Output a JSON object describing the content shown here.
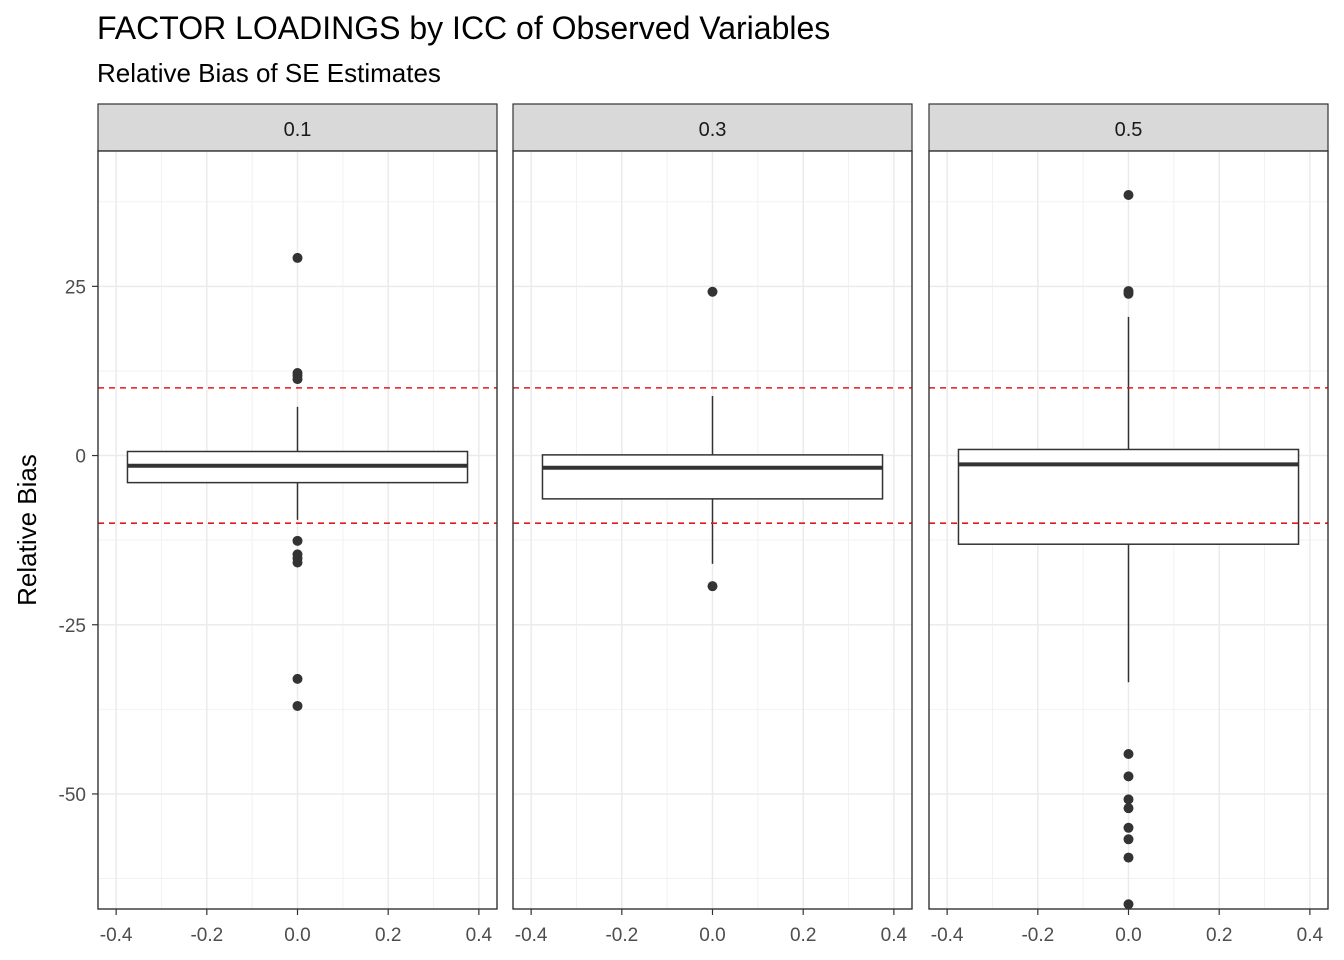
{
  "title": "FACTOR LOADINGS by ICC of Observed Variables",
  "subtitle": "Relative Bias of SE Estimates",
  "chart_data": {
    "type": "boxplot",
    "ylabel": "Relative Bias",
    "xlabel": "",
    "xlim": [
      -0.4,
      0.4
    ],
    "ylim": [
      -67,
      45
    ],
    "x_ticks": [
      "-0.4",
      "-0.2",
      "0.0",
      "0.2",
      "0.4"
    ],
    "y_ticks": [
      {
        "value": 25,
        "label": "25"
      },
      {
        "value": 0,
        "label": "0"
      },
      {
        "value": -25,
        "label": "-25"
      },
      {
        "value": -50,
        "label": "-50"
      }
    ],
    "reference_lines": [
      10,
      -10
    ],
    "reference_line_color": "#e31a1c",
    "grid": true,
    "facets": [
      {
        "label": "0.1",
        "box": {
          "q1": -4,
          "median": -1.5,
          "q3": 0.6,
          "whisker_low": -9.5,
          "whisker_high": 7.2
        },
        "outliers": [
          29.2,
          12.2,
          11.8,
          11.3,
          -12.6,
          -14.6,
          -15.2,
          -15.8,
          -33,
          -37
        ]
      },
      {
        "label": "0.3",
        "box": {
          "q1": -6.4,
          "median": -1.8,
          "q3": 0.1,
          "whisker_low": -16,
          "whisker_high": 8.8
        },
        "outliers": [
          24.2,
          -19.3
        ]
      },
      {
        "label": "0.5",
        "box": {
          "q1": -13.1,
          "median": -1.3,
          "q3": 0.9,
          "whisker_low": -33.5,
          "whisker_high": 20.5
        },
        "outliers": [
          38.5,
          24.3,
          23.9,
          -44.1,
          -47.4,
          -50.8,
          -52.1,
          -55,
          -56.7,
          -59.4,
          -66.3
        ]
      }
    ]
  }
}
